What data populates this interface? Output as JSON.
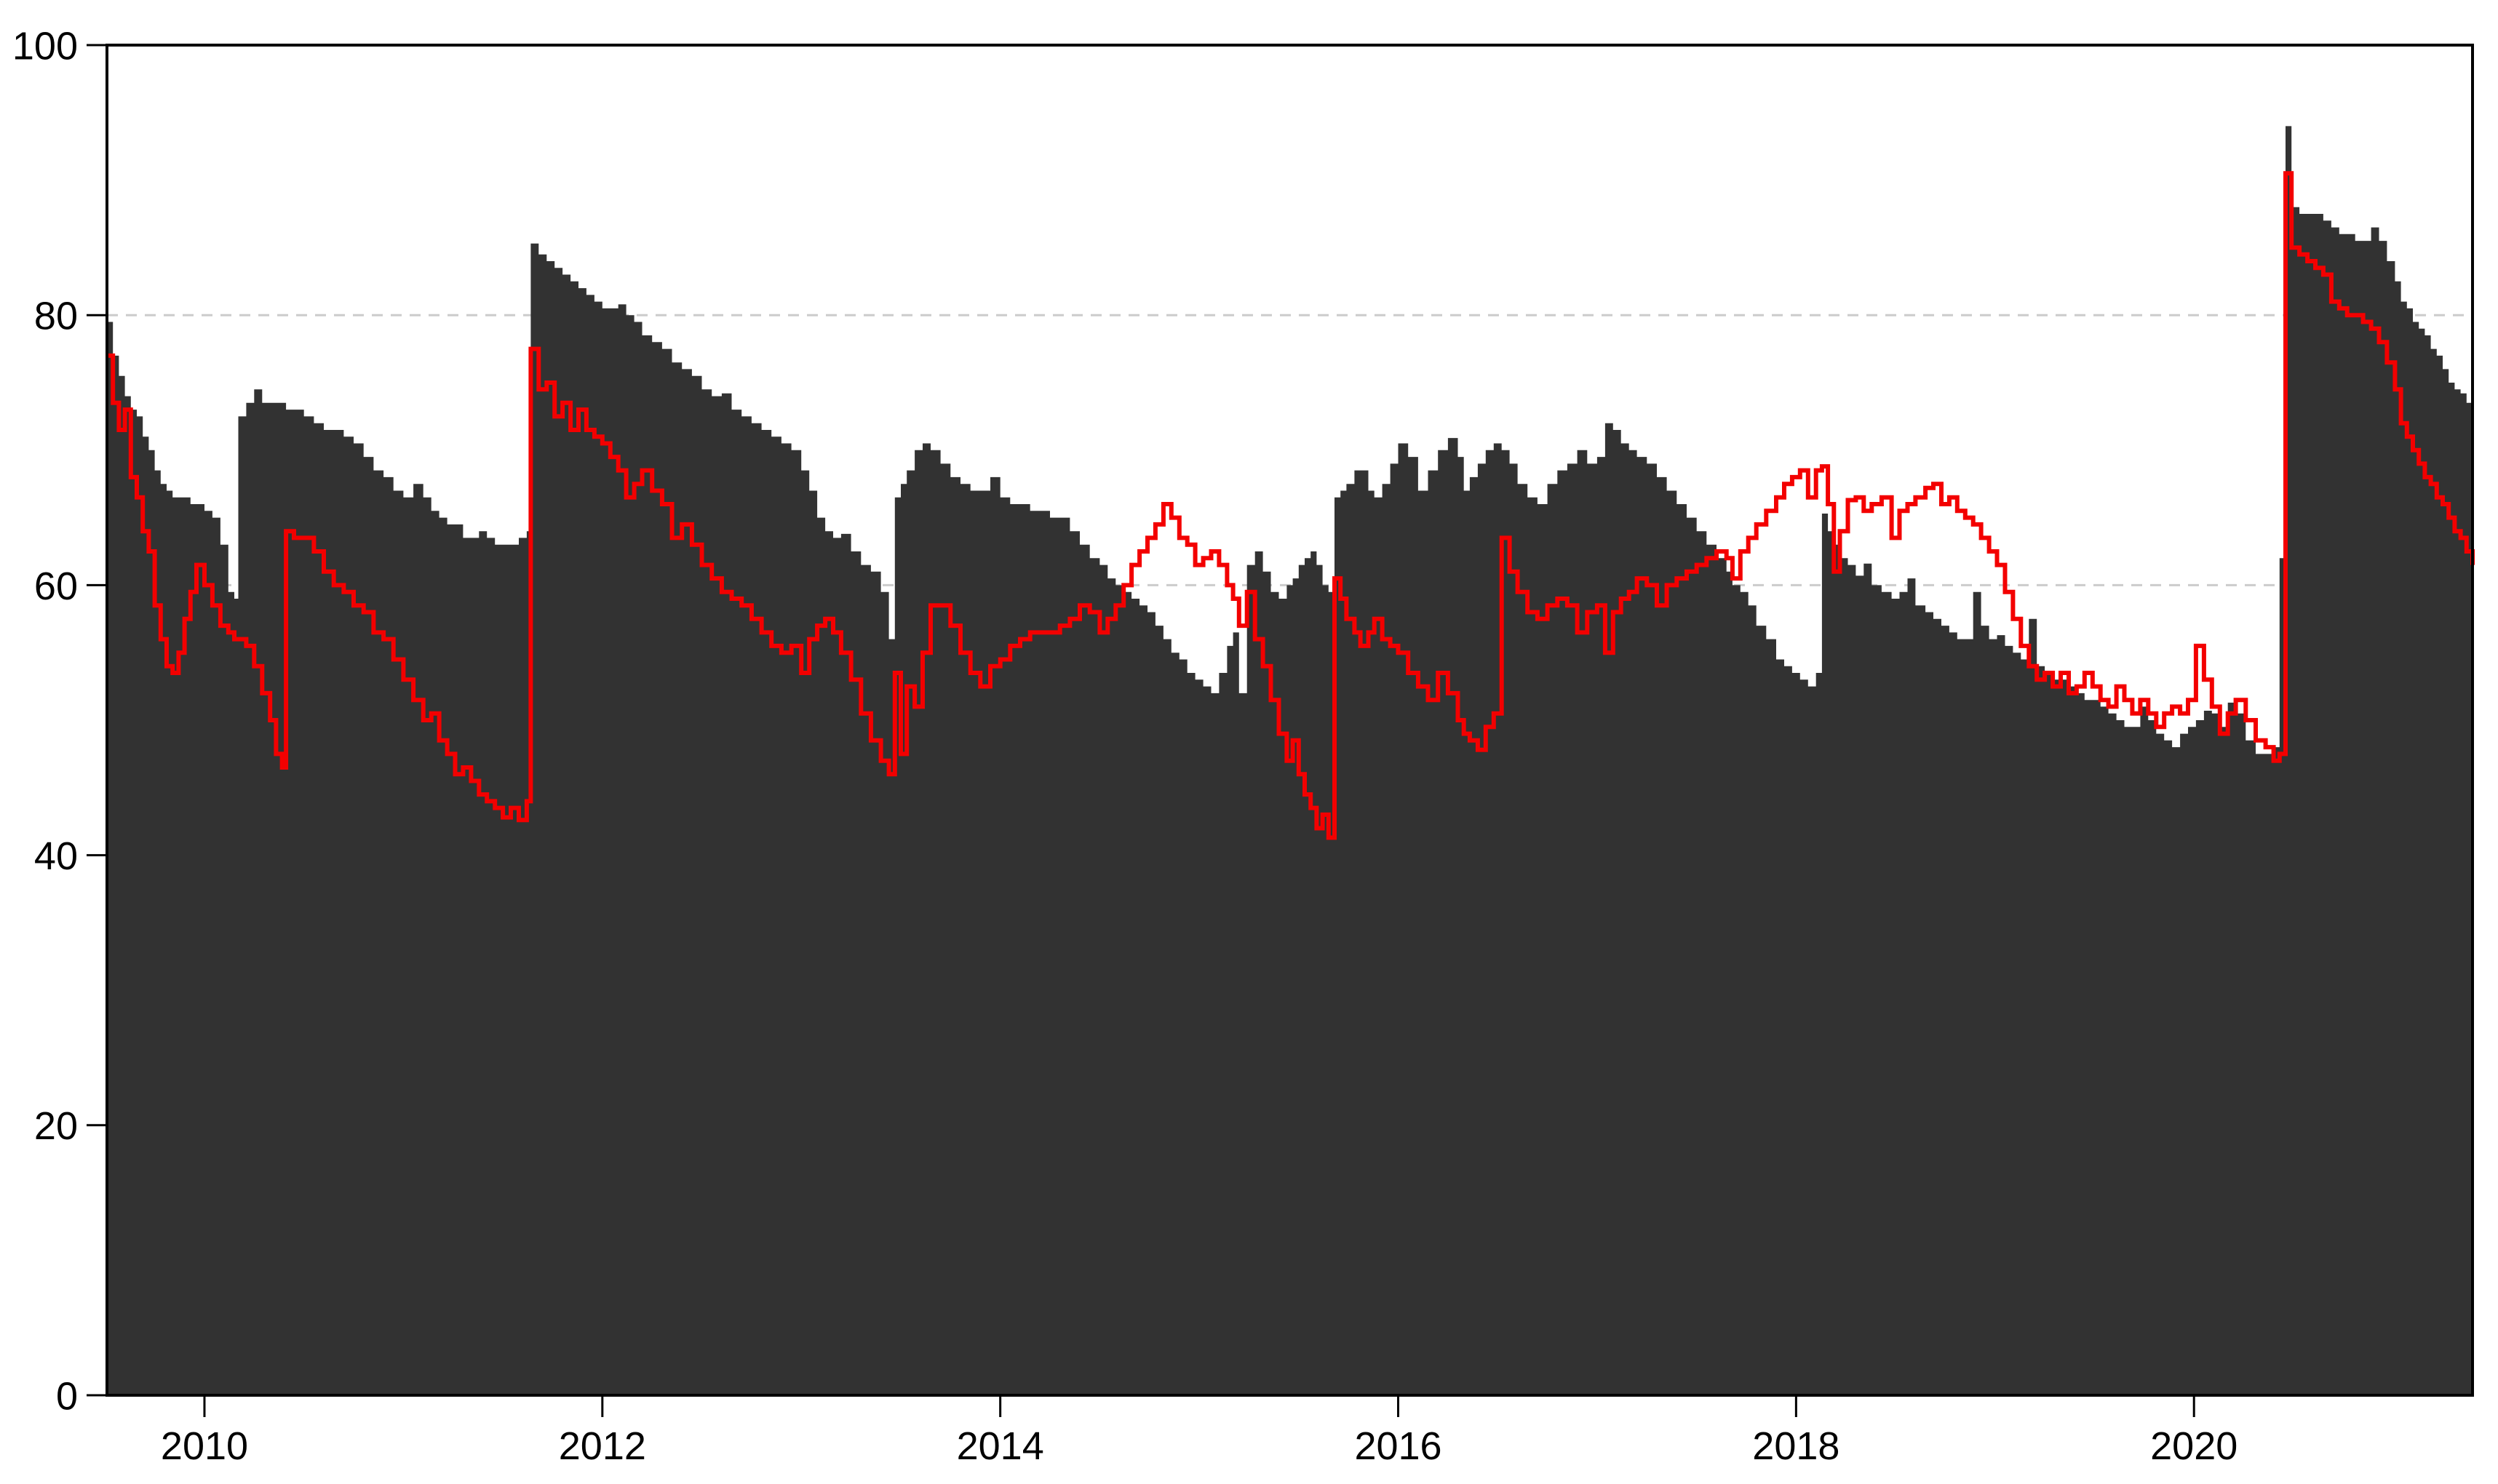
{
  "chart_data": {
    "type": "area",
    "description_of_visible_content": "Time-series plot: dark gray stepped area series with bright red stepped line overlay, x axis 2010-2020, y axis 0-100, dashed gridlines at 60 and 80",
    "xlim": [
      2009.51,
      2021.4
    ],
    "ylim": [
      0,
      100
    ],
    "xticks": [
      2010,
      2012,
      2014,
      2016,
      2018,
      2020
    ],
    "xtick_labels": [
      "2010",
      "2012",
      "2014",
      "2016",
      "2018",
      "2020"
    ],
    "yticks": [
      0,
      20,
      40,
      60,
      80,
      100
    ],
    "ytick_labels": [
      "0",
      "20",
      "40",
      "60",
      "80",
      "100"
    ],
    "grid_values": [
      20,
      40,
      60,
      80
    ],
    "grid_style": "dashed",
    "legend": "none",
    "title": "",
    "xlabel": "",
    "ylabel": "",
    "colors": {
      "area_fill": "#323232",
      "line": "#f30000",
      "grid": "#cccccc",
      "frame": "#000000",
      "background": "#ffffff"
    },
    "layout": {
      "figure_width": 3433,
      "figure_height": 2040,
      "plot_left": 147,
      "plot_right": 3398,
      "plot_top": 62,
      "plot_bottom": 1918,
      "y_tick_len": 28,
      "x_tick_len": 30,
      "y_label_x": 107,
      "x_label_y": 2006
    },
    "x": [
      2009.51,
      2009.54,
      2009.57,
      2009.6,
      2009.63,
      2009.66,
      2009.69,
      2009.72,
      2009.75,
      2009.78,
      2009.81,
      2009.84,
      2009.87,
      2009.9,
      2009.93,
      2009.96,
      2010.0,
      2010.04,
      2010.08,
      2010.12,
      2010.15,
      2010.17,
      2010.21,
      2010.25,
      2010.29,
      2010.33,
      2010.36,
      2010.39,
      2010.41,
      2010.45,
      2010.5,
      2010.55,
      2010.6,
      2010.65,
      2010.7,
      2010.75,
      2010.8,
      2010.85,
      2010.9,
      2010.95,
      2011.0,
      2011.05,
      2011.1,
      2011.14,
      2011.18,
      2011.22,
      2011.26,
      2011.3,
      2011.34,
      2011.38,
      2011.42,
      2011.46,
      2011.5,
      2011.54,
      2011.58,
      2011.62,
      2011.64,
      2011.68,
      2011.72,
      2011.76,
      2011.8,
      2011.84,
      2011.88,
      2011.92,
      2011.96,
      2012.0,
      2012.04,
      2012.08,
      2012.12,
      2012.16,
      2012.2,
      2012.25,
      2012.3,
      2012.35,
      2012.4,
      2012.45,
      2012.5,
      2012.55,
      2012.6,
      2012.65,
      2012.7,
      2012.75,
      2012.8,
      2012.85,
      2012.9,
      2012.95,
      2013.0,
      2013.04,
      2013.08,
      2013.12,
      2013.16,
      2013.2,
      2013.25,
      2013.3,
      2013.35,
      2013.4,
      2013.44,
      2013.47,
      2013.5,
      2013.53,
      2013.57,
      2013.61,
      2013.65,
      2013.7,
      2013.75,
      2013.8,
      2013.85,
      2013.9,
      2013.95,
      2014.0,
      2014.05,
      2014.1,
      2014.15,
      2014.2,
      2014.25,
      2014.3,
      2014.35,
      2014.4,
      2014.45,
      2014.5,
      2014.54,
      2014.58,
      2014.62,
      2014.66,
      2014.7,
      2014.74,
      2014.78,
      2014.82,
      2014.86,
      2014.9,
      2014.94,
      2014.98,
      2015.02,
      2015.06,
      2015.1,
      2015.14,
      2015.17,
      2015.2,
      2015.24,
      2015.28,
      2015.32,
      2015.36,
      2015.4,
      2015.44,
      2015.47,
      2015.5,
      2015.53,
      2015.56,
      2015.59,
      2015.62,
      2015.65,
      2015.68,
      2015.71,
      2015.74,
      2015.78,
      2015.81,
      2015.85,
      2015.88,
      2015.92,
      2015.96,
      2016.0,
      2016.05,
      2016.1,
      2016.15,
      2016.2,
      2016.25,
      2016.3,
      2016.33,
      2016.36,
      2016.4,
      2016.44,
      2016.48,
      2016.52,
      2016.56,
      2016.6,
      2016.65,
      2016.7,
      2016.75,
      2016.8,
      2016.85,
      2016.9,
      2016.95,
      2017.0,
      2017.04,
      2017.08,
      2017.12,
      2017.16,
      2017.2,
      2017.25,
      2017.3,
      2017.35,
      2017.4,
      2017.45,
      2017.5,
      2017.55,
      2017.6,
      2017.65,
      2017.68,
      2017.72,
      2017.76,
      2017.8,
      2017.85,
      2017.9,
      2017.94,
      2017.98,
      2018.02,
      2018.06,
      2018.1,
      2018.13,
      2018.16,
      2018.19,
      2018.22,
      2018.26,
      2018.3,
      2018.34,
      2018.38,
      2018.43,
      2018.48,
      2018.52,
      2018.56,
      2018.6,
      2018.65,
      2018.69,
      2018.73,
      2018.77,
      2018.81,
      2018.85,
      2018.89,
      2018.93,
      2018.97,
      2019.01,
      2019.05,
      2019.09,
      2019.13,
      2019.17,
      2019.21,
      2019.25,
      2019.29,
      2019.33,
      2019.37,
      2019.41,
      2019.45,
      2019.49,
      2019.53,
      2019.57,
      2019.61,
      2019.65,
      2019.69,
      2019.73,
      2019.77,
      2019.81,
      2019.85,
      2019.89,
      2019.93,
      2019.97,
      2020.01,
      2020.05,
      2020.09,
      2020.13,
      2020.17,
      2020.21,
      2020.26,
      2020.31,
      2020.36,
      2020.4,
      2020.43,
      2020.46,
      2020.49,
      2020.53,
      2020.57,
      2020.61,
      2020.65,
      2020.69,
      2020.73,
      2020.77,
      2020.81,
      2020.85,
      2020.89,
      2020.93,
      2020.97,
      2021.01,
      2021.04,
      2021.07,
      2021.1,
      2021.13,
      2021.16,
      2021.19,
      2021.22,
      2021.25,
      2021.28,
      2021.31,
      2021.34,
      2021.37,
      2021.4
    ],
    "series": [
      {
        "name": "black_area",
        "render": "step-area",
        "color": "#323232",
        "values": [
          79.5,
          77.0,
          75.5,
          74.0,
          73.0,
          72.5,
          71.0,
          70.0,
          68.5,
          67.5,
          67.0,
          66.5,
          66.5,
          66.5,
          66.0,
          66.0,
          65.5,
          65.0,
          63.0,
          59.5,
          59.0,
          72.5,
          73.5,
          74.5,
          73.5,
          73.5,
          73.5,
          73.5,
          73.0,
          73.0,
          72.5,
          72.0,
          71.5,
          71.5,
          71.0,
          70.5,
          69.5,
          68.5,
          68.0,
          67.0,
          66.5,
          67.5,
          66.5,
          65.5,
          65.0,
          64.5,
          64.5,
          63.5,
          63.5,
          64.0,
          63.5,
          63.0,
          63.0,
          63.0,
          63.5,
          64.0,
          85.3,
          84.5,
          84.0,
          83.5,
          83.0,
          82.5,
          82.0,
          81.5,
          81.0,
          80.5,
          80.5,
          80.8,
          80.0,
          79.5,
          78.5,
          78.0,
          77.5,
          76.5,
          76.0,
          75.5,
          74.5,
          74.0,
          74.2,
          73.0,
          72.5,
          72.0,
          71.5,
          71.0,
          70.5,
          70.0,
          68.5,
          67.0,
          65.0,
          64.0,
          63.5,
          63.8,
          62.5,
          61.5,
          61.0,
          59.5,
          56.0,
          66.5,
          67.5,
          68.5,
          70.0,
          70.5,
          70.0,
          69.0,
          68.0,
          67.5,
          67.0,
          67.0,
          68.0,
          66.5,
          66.0,
          66.0,
          65.5,
          65.5,
          65.0,
          65.0,
          64.0,
          63.0,
          62.0,
          61.5,
          60.5,
          60.0,
          59.5,
          59.0,
          58.5,
          58.0,
          57.0,
          56.0,
          55.0,
          54.5,
          53.5,
          53.0,
          52.5,
          52.0,
          53.5,
          55.5,
          56.5,
          52.0,
          61.5,
          62.5,
          61.0,
          59.5,
          59.0,
          60.0,
          60.5,
          61.5,
          62.0,
          62.5,
          61.5,
          60.0,
          59.5,
          66.5,
          67.0,
          67.5,
          68.5,
          68.5,
          67.0,
          66.5,
          67.5,
          69.0,
          70.5,
          69.5,
          67.0,
          68.5,
          70.0,
          70.9,
          69.5,
          67.0,
          68.0,
          69.0,
          70.0,
          70.5,
          70.0,
          69.0,
          67.5,
          66.5,
          66.0,
          67.5,
          68.5,
          69.0,
          70.0,
          69.0,
          69.5,
          72.0,
          71.5,
          70.5,
          70.0,
          69.5,
          69.0,
          68.0,
          67.0,
          66.0,
          65.0,
          64.0,
          63.0,
          62.0,
          61.0,
          60.0,
          59.5,
          58.5,
          57.0,
          56.0,
          54.5,
          54.0,
          53.5,
          53.0,
          52.5,
          53.5,
          65.3,
          64.0,
          63.0,
          62.0,
          61.5,
          60.7,
          61.6,
          60.0,
          59.5,
          59.0,
          59.5,
          60.5,
          58.5,
          58.0,
          57.5,
          57.0,
          56.5,
          56.0,
          56.0,
          59.5,
          57.0,
          56.0,
          56.3,
          55.5,
          55.0,
          54.5,
          57.5,
          54.0,
          53.5,
          53.0,
          53.0,
          52.5,
          52.0,
          51.5,
          51.5,
          51.0,
          50.5,
          50.0,
          49.5,
          49.5,
          51.0,
          50.0,
          49.0,
          48.5,
          48.0,
          49.0,
          49.5,
          50.0,
          50.7,
          50.5,
          49.5,
          51.3,
          50.5,
          48.5,
          47.5,
          47.5,
          48.0,
          62.0,
          94.0,
          88.0,
          87.5,
          87.5,
          87.5,
          87.0,
          86.5,
          86.0,
          86.0,
          85.5,
          85.5,
          86.5,
          85.5,
          84.0,
          82.5,
          81.0,
          80.5,
          79.5,
          79.0,
          78.5,
          77.5,
          77.0,
          76.0,
          75.0,
          74.5,
          74.2,
          73.5,
          73.5
        ]
      },
      {
        "name": "red_line",
        "render": "step-line",
        "color": "#f30000",
        "values": [
          77.0,
          73.5,
          71.5,
          73.0,
          68.0,
          66.5,
          64.0,
          62.5,
          58.5,
          56.0,
          54.0,
          53.5,
          55.0,
          57.5,
          59.5,
          61.5,
          60.0,
          58.5,
          57.0,
          56.5,
          56.0,
          56.0,
          55.5,
          54.0,
          52.0,
          50.0,
          47.5,
          46.5,
          64.0,
          63.5,
          63.5,
          62.5,
          61.0,
          60.0,
          59.5,
          58.5,
          58.0,
          56.5,
          56.0,
          54.5,
          53.0,
          51.5,
          50.0,
          50.5,
          48.5,
          47.5,
          46.0,
          46.5,
          45.5,
          44.5,
          44.0,
          43.5,
          42.8,
          43.5,
          42.6,
          44.0,
          77.5,
          74.5,
          75.0,
          72.5,
          73.5,
          71.5,
          73.0,
          71.5,
          71.0,
          70.5,
          69.5,
          68.5,
          66.5,
          67.5,
          68.5,
          67.0,
          66.0,
          63.5,
          64.5,
          63.0,
          61.5,
          60.5,
          59.5,
          59.0,
          58.5,
          57.5,
          56.5,
          55.5,
          55.0,
          55.5,
          53.5,
          56.0,
          57.0,
          57.5,
          56.5,
          55.0,
          53.0,
          50.5,
          48.5,
          47.0,
          46.0,
          53.5,
          47.5,
          52.5,
          51.0,
          55.0,
          58.5,
          58.5,
          57.0,
          55.0,
          53.5,
          52.5,
          54.0,
          54.5,
          55.5,
          56.0,
          56.5,
          56.5,
          56.5,
          57.0,
          57.5,
          58.5,
          58.0,
          56.5,
          57.5,
          58.5,
          60.0,
          61.5,
          62.5,
          63.5,
          64.5,
          66.0,
          65.0,
          63.5,
          63.0,
          61.5,
          62.0,
          62.5,
          61.5,
          60.0,
          59.0,
          57.0,
          59.5,
          56.0,
          54.0,
          51.5,
          49.0,
          47.0,
          48.5,
          46.0,
          44.5,
          43.5,
          42.0,
          43.0,
          41.3,
          60.5,
          59.0,
          57.5,
          56.5,
          55.5,
          56.5,
          57.5,
          56.0,
          55.5,
          55.0,
          53.5,
          52.5,
          51.5,
          53.5,
          52.0,
          50.0,
          49.0,
          48.5,
          47.8,
          49.5,
          50.5,
          63.5,
          61.0,
          59.5,
          58.0,
          57.5,
          58.5,
          59.0,
          58.5,
          56.5,
          58.0,
          58.5,
          55.0,
          58.0,
          59.0,
          59.5,
          60.5,
          60.0,
          58.5,
          60.0,
          60.5,
          61.0,
          61.5,
          62.0,
          62.5,
          62.0,
          60.5,
          62.5,
          63.5,
          64.5,
          65.5,
          66.5,
          67.5,
          68.0,
          68.5,
          66.5,
          68.5,
          68.8,
          66.0,
          61.0,
          64.0,
          66.3,
          66.5,
          65.5,
          66.0,
          66.5,
          63.5,
          65.5,
          66.0,
          66.5,
          67.2,
          67.5,
          66.0,
          66.5,
          65.5,
          65.0,
          64.5,
          63.5,
          62.5,
          61.5,
          59.5,
          57.5,
          55.5,
          54.0,
          53.0,
          53.5,
          52.5,
          53.5,
          52.0,
          52.5,
          53.5,
          52.5,
          51.5,
          51.0,
          52.5,
          51.5,
          50.5,
          51.5,
          50.5,
          49.5,
          50.5,
          51.0,
          50.5,
          51.5,
          55.5,
          53.0,
          51.0,
          49.0,
          50.5,
          51.5,
          50.0,
          48.5,
          48.0,
          47.0,
          47.5,
          90.5,
          85.0,
          84.5,
          84.0,
          83.5,
          83.0,
          81.0,
          80.5,
          80.0,
          80.0,
          79.5,
          79.0,
          78.0,
          76.5,
          74.5,
          72.0,
          71.0,
          70.0,
          69.0,
          68.0,
          67.5,
          66.5,
          66.0,
          65.0,
          64.0,
          63.5,
          62.5,
          61.5
        ]
      }
    ]
  }
}
